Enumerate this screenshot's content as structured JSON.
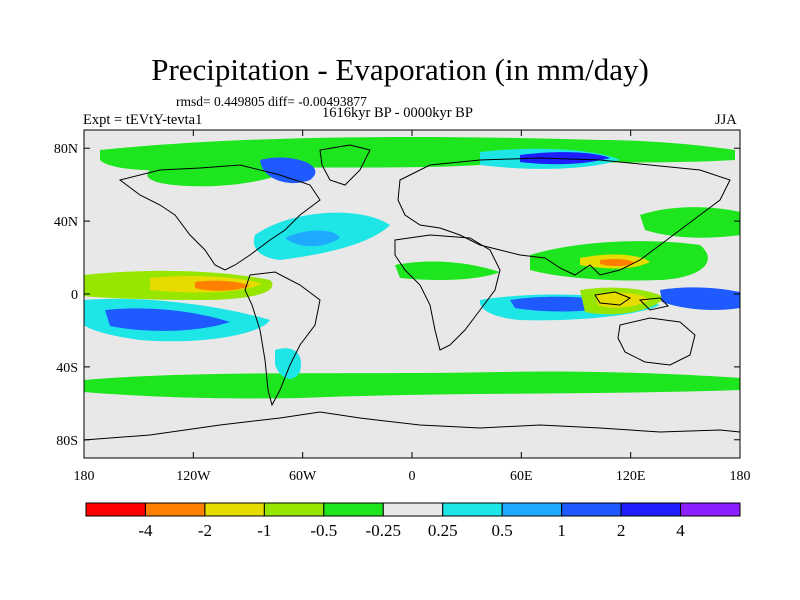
{
  "header": {
    "title": "Precipitation - Evaporation (in mm/day)",
    "stats": "rmsd= 0.449805 diff= -0.00493877",
    "period": "1616kyr BP - 0000kyr BP",
    "experiment": "Expt = tEVtY-tevta1",
    "season": "JJA"
  },
  "map": {
    "lat_ticks": [
      {
        "value": 80,
        "label": "80N"
      },
      {
        "value": 40,
        "label": "40N"
      },
      {
        "value": 0,
        "label": "0"
      },
      {
        "value": -40,
        "label": "40S"
      },
      {
        "value": -80,
        "label": "80S"
      }
    ],
    "lon_ticks": [
      {
        "value": -180,
        "label": "180"
      },
      {
        "value": -120,
        "label": "120W"
      },
      {
        "value": -60,
        "label": "60W"
      },
      {
        "value": 0,
        "label": "0"
      },
      {
        "value": 60,
        "label": "60E"
      },
      {
        "value": 120,
        "label": "120E"
      },
      {
        "value": 180,
        "label": "180"
      }
    ],
    "background_color": "#e8e8e8"
  },
  "colorbar": {
    "labels": [
      "-4",
      "-2",
      "-1",
      "-0.5",
      "-0.25",
      "0.25",
      "0.5",
      "1",
      "2",
      "4"
    ],
    "colors": [
      "#ff0000",
      "#ff8000",
      "#e6dc00",
      "#96e600",
      "#1ee61e",
      "#e8e8e8",
      "#1ee6e6",
      "#1eaaff",
      "#1e5aff",
      "#1e1eff",
      "#8c1eff"
    ]
  }
}
